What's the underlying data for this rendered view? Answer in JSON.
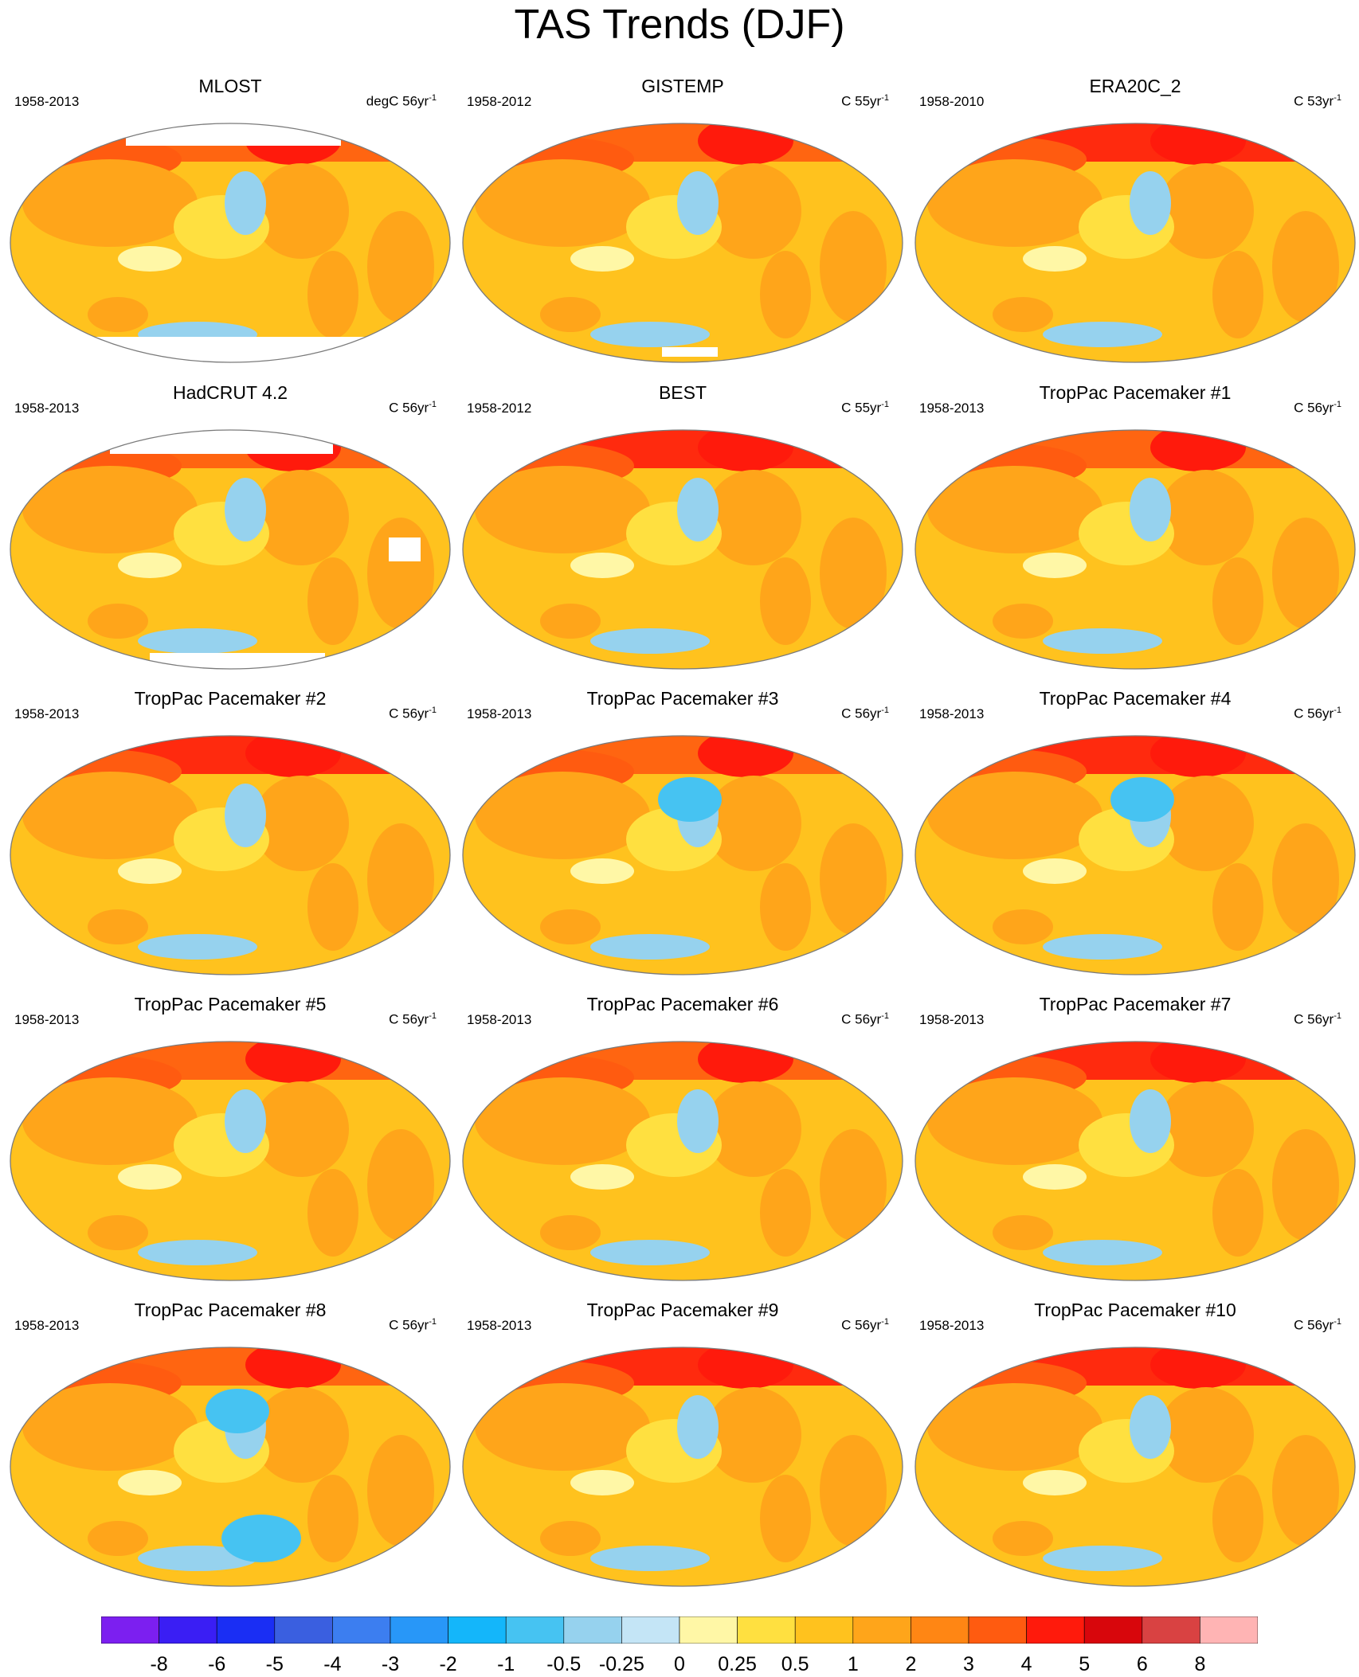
{
  "title": "TAS Trends (DJF)",
  "panels": [
    {
      "name": "MLOST",
      "period": "1958-2013",
      "units": "degC 56yr",
      "units_exp": "-1",
      "missing": "mlost"
    },
    {
      "name": "GISTEMP",
      "period": "1958-2012",
      "units": "C 55yr",
      "units_exp": "-1",
      "missing": "gistemp"
    },
    {
      "name": "ERA20C_2",
      "period": "1958-2010",
      "units": "C 53yr",
      "units_exp": "-1",
      "missing": "none"
    },
    {
      "name": "HadCRUT 4.2",
      "period": "1958-2013",
      "units": "C 56yr",
      "units_exp": "-1",
      "missing": "hadcrut"
    },
    {
      "name": "BEST",
      "period": "1958-2012",
      "units": "C 55yr",
      "units_exp": "-1",
      "missing": "none"
    },
    {
      "name": "TropPac Pacemaker #1",
      "period": "1958-2013",
      "units": "C 56yr",
      "units_exp": "-1",
      "missing": "none"
    },
    {
      "name": "TropPac Pacemaker #2",
      "period": "1958-2013",
      "units": "C 56yr",
      "units_exp": "-1",
      "missing": "none"
    },
    {
      "name": "TropPac Pacemaker #3",
      "period": "1958-2013",
      "units": "C 56yr",
      "units_exp": "-1",
      "missing": "none"
    },
    {
      "name": "TropPac Pacemaker #4",
      "period": "1958-2013",
      "units": "C 56yr",
      "units_exp": "-1",
      "missing": "none"
    },
    {
      "name": "TropPac Pacemaker #5",
      "period": "1958-2013",
      "units": "C 56yr",
      "units_exp": "-1",
      "missing": "none"
    },
    {
      "name": "TropPac Pacemaker #6",
      "period": "1958-2013",
      "units": "C 56yr",
      "units_exp": "-1",
      "missing": "none"
    },
    {
      "name": "TropPac Pacemaker #7",
      "period": "1958-2013",
      "units": "C 56yr",
      "units_exp": "-1",
      "missing": "none"
    },
    {
      "name": "TropPac Pacemaker #8",
      "period": "1958-2013",
      "units": "C 56yr",
      "units_exp": "-1",
      "missing": "none"
    },
    {
      "name": "TropPac Pacemaker #9",
      "period": "1958-2013",
      "units": "C 56yr",
      "units_exp": "-1",
      "missing": "none"
    },
    {
      "name": "TropPac Pacemaker #10",
      "period": "1958-2013",
      "units": "C 56yr",
      "units_exp": "-1",
      "missing": "none"
    }
  ],
  "colorbar": {
    "labels": [
      "-8",
      "-6",
      "-5",
      "-4",
      "-3",
      "-2",
      "-1",
      "-0.5",
      "-0.25",
      "0",
      "0.25",
      "0.5",
      "1",
      "2",
      "3",
      "4",
      "5",
      "6",
      "8"
    ],
    "colors": [
      "#7c1ff0",
      "#3a1ef4",
      "#1a2ef4",
      "#3a5fe0",
      "#3c7ef0",
      "#2897f8",
      "#14b6fa",
      "#46c3f2",
      "#96d2ee",
      "#c4e5f6",
      "#fff7a6",
      "#ffe040",
      "#ffc21e",
      "#ffa51a",
      "#ff8614",
      "#ff5b10",
      "#ff1a0c",
      "#d8060c",
      "#d94242",
      "#ffb4b4"
    ]
  },
  "palette": {
    "ocean": "#ffc21e",
    "land": "#ffa51a",
    "coast": "#7a7a7a",
    "missing": "#ffffff",
    "warm": "#ff5b10",
    "hot": "#ff1a0c",
    "cool": "#96d2ee",
    "cold": "#46c3f2",
    "mild": "#ffe040",
    "neutral": "#fff7a6"
  }
}
